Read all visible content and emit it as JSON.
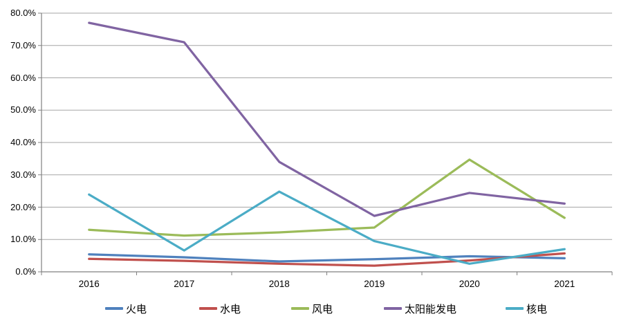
{
  "chart_data": {
    "type": "line",
    "title": "",
    "xlabel": "",
    "ylabel": "",
    "x": [
      "2016",
      "2017",
      "2018",
      "2019",
      "2020",
      "2021"
    ],
    "series": [
      {
        "name": "火电",
        "color": "#4F81BD",
        "values": [
          5.4,
          4.5,
          3.2,
          3.9,
          4.8,
          4.2
        ]
      },
      {
        "name": "水电",
        "color": "#C0504D",
        "values": [
          4.0,
          3.4,
          2.5,
          1.9,
          3.5,
          5.7
        ]
      },
      {
        "name": "风电",
        "color": "#9BBB59",
        "values": [
          13.0,
          11.2,
          12.2,
          13.7,
          34.7,
          16.7
        ]
      },
      {
        "name": "太阳能发电",
        "color": "#8064A2",
        "values": [
          77.0,
          71.0,
          34.0,
          17.3,
          24.4,
          21.1
        ]
      },
      {
        "name": "核电",
        "color": "#4BACC6",
        "values": [
          23.9,
          6.6,
          24.8,
          9.5,
          2.5,
          7.0
        ]
      }
    ],
    "ylim": [
      0,
      80
    ],
    "ytick_step": 10,
    "ytick_labels": [
      "0.0%",
      "10.0%",
      "20.0%",
      "30.0%",
      "40.0%",
      "50.0%",
      "60.0%",
      "70.0%",
      "80.0%"
    ],
    "grid": true,
    "legend_position": "bottom"
  },
  "colors": {
    "background": "#FFFFFF",
    "gridline": "#A6A6A6",
    "axis": "#808080",
    "text": "#000000"
  }
}
